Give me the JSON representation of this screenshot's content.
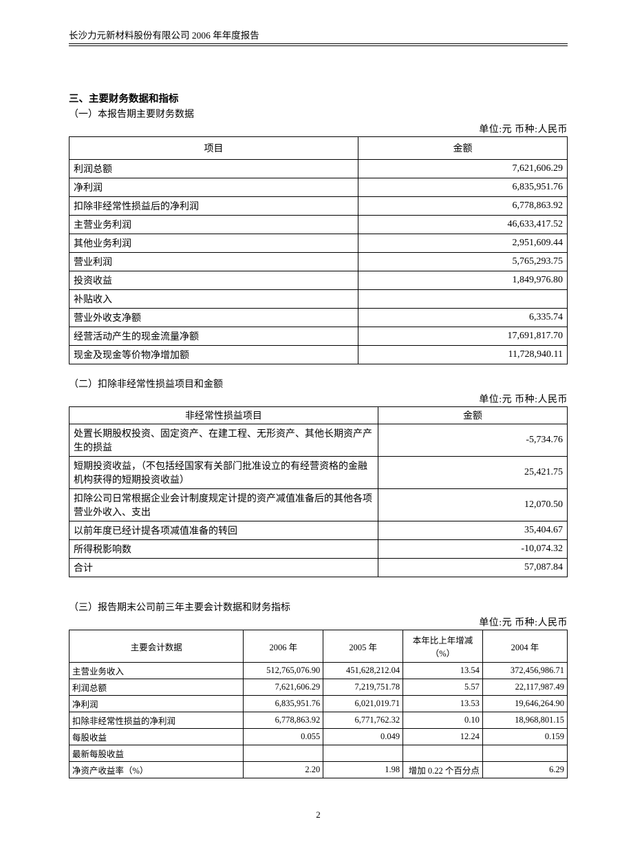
{
  "header": "长沙力元新材料股份有限公司  2006 年年度报告",
  "section_title": "三、主要财务数据和指标",
  "subsection1": {
    "title": "（一）本报告期主要财务数据",
    "unit": "单位:元  币种:人民币",
    "columns": [
      "项目",
      "金额"
    ],
    "rows": [
      {
        "label": "利润总额",
        "value": "7,621,606.29"
      },
      {
        "label": "净利润",
        "value": "6,835,951.76"
      },
      {
        "label": "扣除非经常性损益后的净利润",
        "value": "6,778,863.92"
      },
      {
        "label": "主营业务利润",
        "value": "46,633,417.52"
      },
      {
        "label": "其他业务利润",
        "value": "2,951,609.44"
      },
      {
        "label": "营业利润",
        "value": "5,765,293.75"
      },
      {
        "label": "投资收益",
        "value": "1,849,976.80"
      },
      {
        "label": "补贴收入",
        "value": ""
      },
      {
        "label": "营业外收支净额",
        "value": "6,335.74"
      },
      {
        "label": "经营活动产生的现金流量净额",
        "value": "17,691,817.70"
      },
      {
        "label": "现金及现金等价物净增加额",
        "value": "11,728,940.11"
      }
    ]
  },
  "subsection2": {
    "title": "（二）扣除非经常性损益项目和金额",
    "unit": "单位:元  币种:人民币",
    "columns": [
      "非经常性损益项目",
      "金额"
    ],
    "rows": [
      {
        "label": "处置长期股权投资、固定资产、在建工程、无形资产、其他长期资产产生的损益",
        "value": "-5,734.76"
      },
      {
        "label": "短期投资收益，（不包括经国家有关部门批准设立的有经营资格的金融机构获得的短期投资收益）",
        "value": "25,421.75"
      },
      {
        "label": "扣除公司日常根据企业会计制度规定计提的资产减值准备后的其他各项营业外收入、支出",
        "value": "12,070.50"
      },
      {
        "label": "以前年度已经计提各项减值准备的转回",
        "value": "35,404.67"
      },
      {
        "label": "所得税影响数",
        "value": "-10,074.32"
      },
      {
        "label": "合计",
        "value": "57,087.84"
      }
    ]
  },
  "subsection3": {
    "title": "（三）报告期末公司前三年主要会计数据和财务指标",
    "unit": "单位:元  币种:人民币",
    "columns": [
      "主要会计数据",
      "2006 年",
      "2005 年",
      "本年比上年增减（%）",
      "2004 年"
    ],
    "rows": [
      {
        "c1": "主营业务收入",
        "c2": "512,765,076.90",
        "c3": "451,628,212.04",
        "c4": "13.54",
        "c5": "372,456,986.71"
      },
      {
        "c1": "利润总额",
        "c2": "7,621,606.29",
        "c3": "7,219,751.78",
        "c4": "5.57",
        "c5": "22,117,987.49"
      },
      {
        "c1": "净利润",
        "c2": "6,835,951.76",
        "c3": "6,021,019.71",
        "c4": "13.53",
        "c5": "19,646,264.90"
      },
      {
        "c1": "扣除非经常性损益的净利润",
        "c2": "6,778,863.92",
        "c3": "6,771,762.32",
        "c4": "0.10",
        "c5": "18,968,801.15"
      },
      {
        "c1": "每股收益",
        "c2": "0.055",
        "c3": "0.049",
        "c4": "12.24",
        "c5": "0.159"
      },
      {
        "c1": "最新每股收益",
        "c2": "",
        "c3": "",
        "c4": "",
        "c5": ""
      },
      {
        "c1": "净资产收益率（%）",
        "c2": "2.20",
        "c3": "1.98",
        "c4": "增加 0.22 个百分点",
        "c5": "6.29"
      }
    ]
  },
  "page_number": "2"
}
